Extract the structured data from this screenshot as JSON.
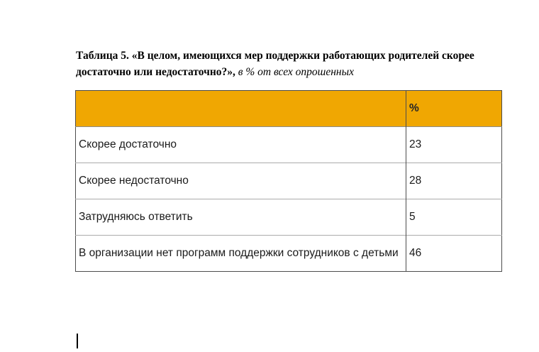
{
  "title": {
    "bold_line1": "Таблица 5. «В целом, имеющихся мер поддержки работающих родителей скорее",
    "bold_line2": "достаточно или недостаточно?»,",
    "italic": "в % от всех опрошенных"
  },
  "table": {
    "accent_color": "#f0a702",
    "border_dark": "#4d4d4d",
    "border_light": "#ababab",
    "header": {
      "label_col": "",
      "percent_col": "%"
    },
    "rows": [
      {
        "label": "Скорее достаточно",
        "value": "23"
      },
      {
        "label": "Скорее недостаточно",
        "value": "28"
      },
      {
        "label": "Затрудняюсь ответить",
        "value": "5"
      },
      {
        "label": "В организации нет программ поддержки сотрудников с детьми",
        "value": "46"
      }
    ]
  },
  "cursor": {
    "visible": "true"
  }
}
